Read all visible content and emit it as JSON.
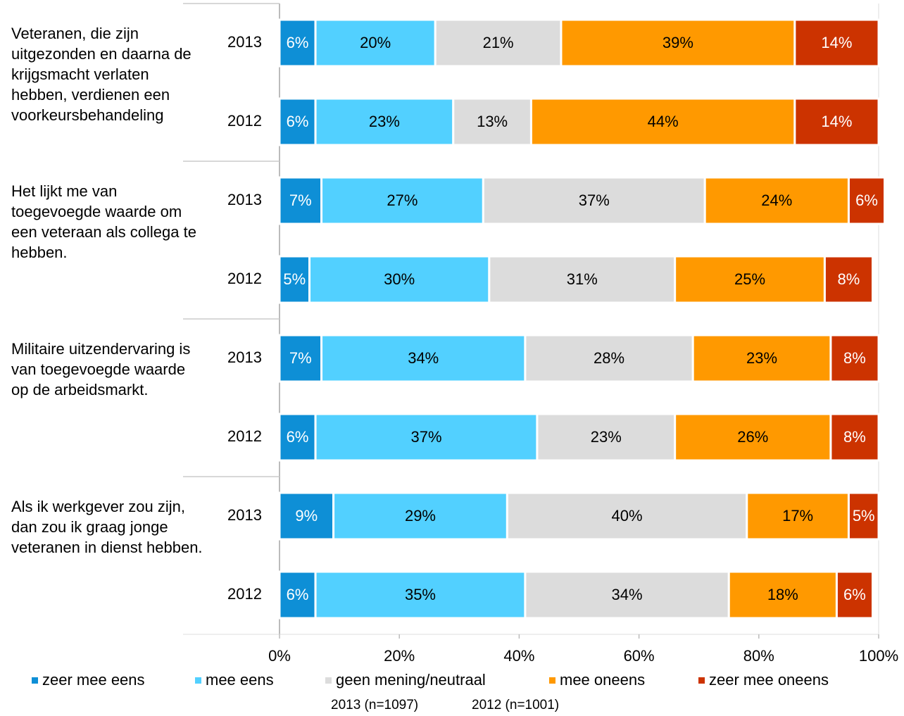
{
  "chart_data": {
    "type": "stacked-barh",
    "groups": [
      "Veteranen, die zijn uitgezonden en daarna de krijgsmacht verlaten hebben, verdienen een voorkeursbehandeling",
      "Het lijkt me van toegevoegde waarde om een veteraan als collega te hebben.",
      "Militaire uitzendervaring is van toegevoegde waarde op de arbeidsmarkt.",
      "Als ik werkgever zou zijn, dan zou ik graag jonge veteranen in dienst hebben."
    ],
    "categories": [
      "2013",
      "2012",
      "2013",
      "2012",
      "2013",
      "2012",
      "2013",
      "2012"
    ],
    "series": [
      {
        "name": "zeer mee eens",
        "color": "#0e8fd6",
        "values": [
          6,
          6,
          7,
          5,
          7,
          6,
          9,
          6
        ],
        "value_labels": [
          "6%",
          "6%",
          "7%",
          "5%",
          "7%",
          "6%",
          "9%",
          "6%"
        ]
      },
      {
        "name": "mee eens",
        "color": "#52d0ff",
        "values": [
          20,
          23,
          27,
          30,
          34,
          37,
          29,
          35
        ],
        "value_labels": [
          "20%",
          "23%",
          "27%",
          "30%",
          "34%",
          "37%",
          "29%",
          "35%"
        ]
      },
      {
        "name": "geen mening/neutraal",
        "color": "#dcdcdc",
        "values": [
          21,
          13,
          37,
          31,
          28,
          23,
          40,
          34
        ],
        "value_labels": [
          "21%",
          "13%",
          "37%",
          "31%",
          "28%",
          "23%",
          "40%",
          "34%"
        ]
      },
      {
        "name": "mee oneens",
        "color": "#ff9900",
        "values": [
          39,
          44,
          24,
          25,
          23,
          26,
          17,
          18
        ],
        "value_labels": [
          "39%",
          "44%",
          "24%",
          "25%",
          "23%",
          "26%",
          "17%",
          "18%"
        ]
      },
      {
        "name": "zeer mee oneens",
        "color": "#cc3300",
        "values": [
          14,
          14,
          6,
          8,
          8,
          8,
          5,
          6
        ],
        "value_labels": [
          "14%",
          "14%",
          "6%",
          "8%",
          "8%",
          "8%",
          "5%",
          "6%"
        ]
      }
    ],
    "xlim": [
      0,
      100
    ],
    "xticks": [
      {
        "value": 0,
        "label": "0%"
      },
      {
        "value": 20,
        "label": "20%"
      },
      {
        "value": 40,
        "label": "40%"
      },
      {
        "value": 60,
        "label": "60%"
      },
      {
        "value": 80,
        "label": "80%"
      },
      {
        "value": 100,
        "label": "100%"
      }
    ],
    "notes": [
      "2013 (n=1097)",
      "2012 (n=1001)"
    ]
  }
}
